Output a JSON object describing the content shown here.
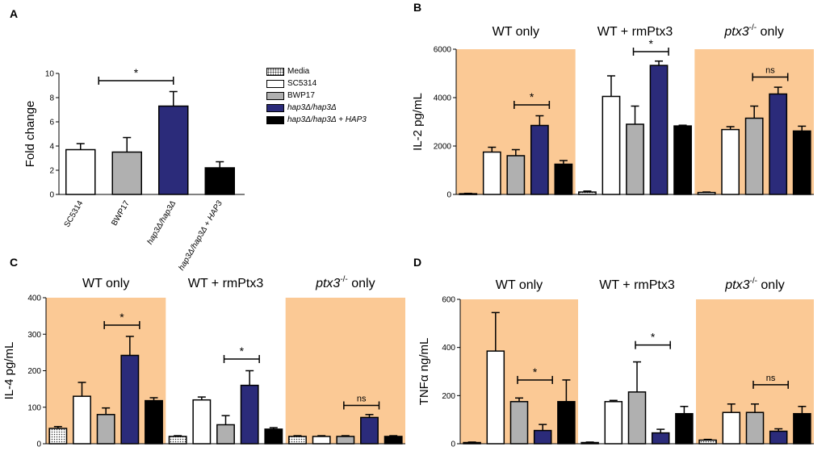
{
  "colors": {
    "media": "dotted",
    "sc5314": "#ffffff",
    "bwp17": "#b0b0b0",
    "mutant": "#2b2b7a",
    "complemented": "#000000",
    "shade": "#fbc995"
  },
  "legend": [
    {
      "label": "Media",
      "fill": "dotted",
      "italic": false
    },
    {
      "label": "SC5314",
      "fill": "#ffffff",
      "italic": false
    },
    {
      "label": "BWP17",
      "fill": "#b0b0b0",
      "italic": false
    },
    {
      "label": "hap3Δ/hap3Δ",
      "fill": "#2b2b7a",
      "italic": true
    },
    {
      "label": "hap3Δ/hap3Δ + HAP3",
      "fill": "#000000",
      "italic": true
    }
  ],
  "chart_data": [
    {
      "id": "A",
      "panel_label": "A",
      "type": "bar",
      "ylabel": "Fold change",
      "ylim": [
        0,
        10
      ],
      "yticks": [
        "0",
        "2",
        "4",
        "6",
        "8",
        "10"
      ],
      "categories": [
        "SC5314",
        "BWP17",
        "hap3Δ/hap3Δ",
        "hap3Δ/hap3Δ + HAP3"
      ],
      "values": [
        3.7,
        3.5,
        7.3,
        2.2
      ],
      "errors": [
        0.5,
        1.2,
        1.2,
        0.5
      ],
      "fills": [
        "#ffffff",
        "#b0b0b0",
        "#2b2b7a",
        "#000000"
      ],
      "significance": [
        {
          "from": 1,
          "to": 2,
          "label": "*",
          "y": 9.4
        }
      ]
    },
    {
      "id": "B",
      "panel_label": "B",
      "type": "bar",
      "ylabel": "IL-2 pg/mL",
      "ylim": [
        0,
        6000
      ],
      "yticks": [
        "0",
        "2000",
        "4000",
        "6000"
      ],
      "series_names": [
        "Media",
        "SC5314",
        "BWP17",
        "hap3Δ/hap3Δ",
        "hap3Δ/hap3Δ + HAP3"
      ],
      "groups": [
        {
          "title": "WT only",
          "shaded": true,
          "values": [
            30,
            1750,
            1600,
            2850,
            1250
          ],
          "errors": [
            15,
            200,
            250,
            400,
            150
          ]
        },
        {
          "title": "WT + rmPtx3",
          "shaded": false,
          "values": [
            100,
            4050,
            2900,
            5330,
            2830
          ],
          "errors": [
            40,
            850,
            750,
            180,
            30
          ]
        },
        {
          "title": "ptx3 only",
          "shaded": true,
          "values": [
            80,
            2680,
            3150,
            4150,
            2620
          ],
          "errors": [
            20,
            120,
            500,
            280,
            200
          ]
        }
      ],
      "significance": [
        {
          "group": 0,
          "from": 3,
          "to": 3,
          "label": "*",
          "y": 3700
        },
        {
          "group": 1,
          "from": 3,
          "to": 3,
          "label": "*",
          "y": 5900
        },
        {
          "group": 2,
          "from": 3,
          "to": 3,
          "label": "ns",
          "y": 4850
        }
      ]
    },
    {
      "id": "C",
      "panel_label": "C",
      "type": "bar",
      "ylabel": "IL-4 pg/mL",
      "ylim": [
        0,
        400
      ],
      "yticks": [
        "0",
        "100",
        "200",
        "300",
        "400"
      ],
      "series_names": [
        "Media",
        "SC5314",
        "BWP17",
        "hap3Δ/hap3Δ",
        "hap3Δ/hap3Δ + HAP3"
      ],
      "groups": [
        {
          "title": "WT only",
          "shaded": true,
          "values": [
            42,
            130,
            80,
            242,
            118
          ],
          "errors": [
            5,
            38,
            18,
            52,
            8
          ]
        },
        {
          "title": "WT + rmPtx3",
          "shaded": false,
          "values": [
            20,
            120,
            52,
            160,
            40
          ],
          "errors": [
            2,
            8,
            25,
            40,
            4
          ]
        },
        {
          "title": "ptx3 only",
          "shaded": true,
          "values": [
            20,
            20,
            20,
            72,
            20
          ],
          "errors": [
            2,
            2,
            2,
            8,
            2
          ]
        }
      ],
      "significance": [
        {
          "group": 0,
          "from": 3,
          "to": 3,
          "label": "*",
          "y": 325
        },
        {
          "group": 1,
          "from": 3,
          "to": 3,
          "label": "*",
          "y": 232
        },
        {
          "group": 2,
          "from": 3,
          "to": 3,
          "label": "ns",
          "y": 105
        }
      ]
    },
    {
      "id": "D",
      "panel_label": "D",
      "type": "bar",
      "ylabel": "TNFα ng/mL",
      "ylim": [
        0,
        600
      ],
      "yticks": [
        "0",
        "200",
        "400",
        "600"
      ],
      "series_names": [
        "Media",
        "SC5314",
        "BWP17",
        "hap3Δ/hap3Δ",
        "hap3Δ/hap3Δ + HAP3"
      ],
      "groups": [
        {
          "title": "WT only",
          "shaded": true,
          "values": [
            5,
            385,
            175,
            55,
            175
          ],
          "errors": [
            2,
            160,
            15,
            25,
            90
          ]
        },
        {
          "title": "WT + rmPtx3",
          "shaded": false,
          "values": [
            5,
            175,
            215,
            45,
            125
          ],
          "errors": [
            2,
            5,
            125,
            15,
            30
          ]
        },
        {
          "title": "ptx3 only",
          "shaded": true,
          "values": [
            15,
            130,
            130,
            52,
            125
          ],
          "errors": [
            3,
            35,
            35,
            10,
            30
          ]
        }
      ],
      "significance": [
        {
          "group": 0,
          "from": 3,
          "to": 3,
          "label": "*",
          "y": 265
        },
        {
          "group": 1,
          "from": 3,
          "to": 3,
          "label": "*",
          "y": 410
        },
        {
          "group": 2,
          "from": 3,
          "to": 3,
          "label": "ns",
          "y": 245
        }
      ]
    }
  ],
  "group_titles": {
    "wt_only": "WT only",
    "wt_rm": "WT + rmPtx3",
    "ptx3_gene": "ptx3",
    "ptx3_sup": "-/-",
    "ptx3_tail": " only"
  }
}
